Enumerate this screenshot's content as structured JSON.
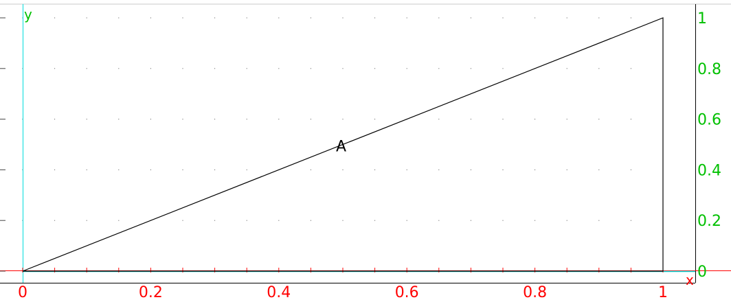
{
  "chart_data": {
    "type": "line",
    "xlabel": "x",
    "ylabel": "y",
    "xlim": [
      0,
      1
    ],
    "ylim": [
      0,
      1
    ],
    "x_ticks": [
      0,
      0.2,
      0.4,
      0.6,
      0.8,
      1
    ],
    "x_tick_labels": [
      "0",
      "0.2",
      "0.4",
      "0.6",
      "0.8",
      "1"
    ],
    "y_ticks": [
      0,
      0.2,
      0.4,
      0.6,
      0.8,
      1
    ],
    "y_tick_labels": [
      "0",
      "0.2",
      "0.4",
      "0.6",
      "0.8",
      "1"
    ],
    "grid": "dotted",
    "series": [
      {
        "values_xy": [
          [
            0,
            0
          ],
          [
            1,
            1
          ],
          [
            1,
            0
          ],
          [
            0,
            0
          ]
        ]
      }
    ],
    "annotations": [
      {
        "text": "A",
        "x": 0.5,
        "y": 0.5
      }
    ],
    "colors": {
      "x_axis": "#ff0000",
      "y_axis": "#00c000",
      "y_axis_line": "#00dddd",
      "curve": "#000000"
    }
  }
}
